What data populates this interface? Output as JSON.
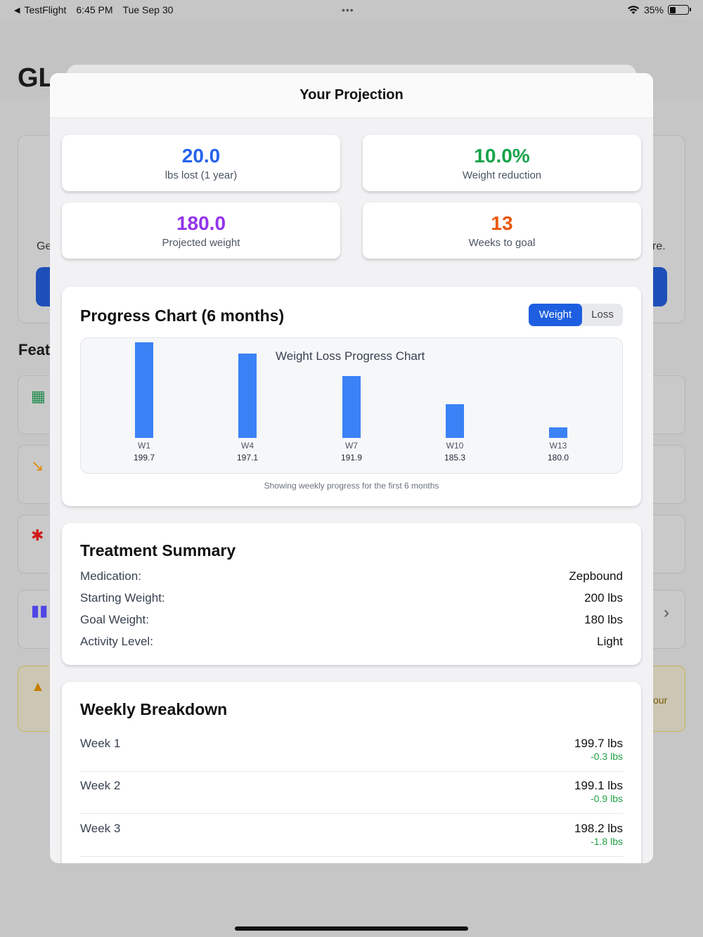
{
  "status_bar": {
    "app": "TestFlight",
    "time": "6:45 PM",
    "date": "Tue Sep 30",
    "battery": "35%",
    "battery_level": 0.35
  },
  "background": {
    "title": "GL",
    "hero_left": "Ge",
    "hero_right": "re.",
    "section": "Feat",
    "warning_text": "our"
  },
  "modal": {
    "title": "Your Projection",
    "stats": [
      {
        "value": "20.0",
        "label": "lbs lost (1 year)",
        "color": "#2563eb"
      },
      {
        "value": "10.0%",
        "label": "Weight reduction",
        "color": "#16a34a"
      },
      {
        "value": "180.0",
        "label": "Projected weight",
        "color": "#9333ea"
      },
      {
        "value": "13",
        "label": "Weeks to goal",
        "color": "#ea580c"
      }
    ],
    "progress": {
      "title": "Progress Chart (6 months)",
      "toggle": {
        "weight": "Weight",
        "loss": "Loss",
        "active": "Weight"
      },
      "caption": "Showing weekly progress for the first 6 months"
    },
    "summary": {
      "title": "Treatment Summary",
      "rows": [
        {
          "key": "Medication:",
          "value": "Zepbound"
        },
        {
          "key": "Starting Weight:",
          "value": "200 lbs"
        },
        {
          "key": "Goal Weight:",
          "value": "180 lbs"
        },
        {
          "key": "Activity Level:",
          "value": "Light"
        }
      ]
    },
    "weekly": {
      "title": "Weekly Breakdown",
      "rows": [
        {
          "week": "Week 1",
          "weight": "199.7 lbs",
          "change": "-0.3 lbs"
        },
        {
          "week": "Week 2",
          "weight": "199.1 lbs",
          "change": "-0.9 lbs"
        },
        {
          "week": "Week 3",
          "weight": "198.2 lbs",
          "change": "-1.8 lbs"
        }
      ]
    }
  },
  "chart_data": {
    "type": "bar",
    "title": "Weight Loss Progress Chart",
    "categories": [
      "W1",
      "W4",
      "W7",
      "W10",
      "W13"
    ],
    "values": [
      199.7,
      197.1,
      191.9,
      185.3,
      180.0
    ],
    "value_labels": [
      "199.7",
      "197.1",
      "191.9",
      "185.3",
      "180.0"
    ],
    "bar_color": "#3b82f6",
    "ylim": [
      177.5,
      199.7
    ],
    "grid": false
  }
}
